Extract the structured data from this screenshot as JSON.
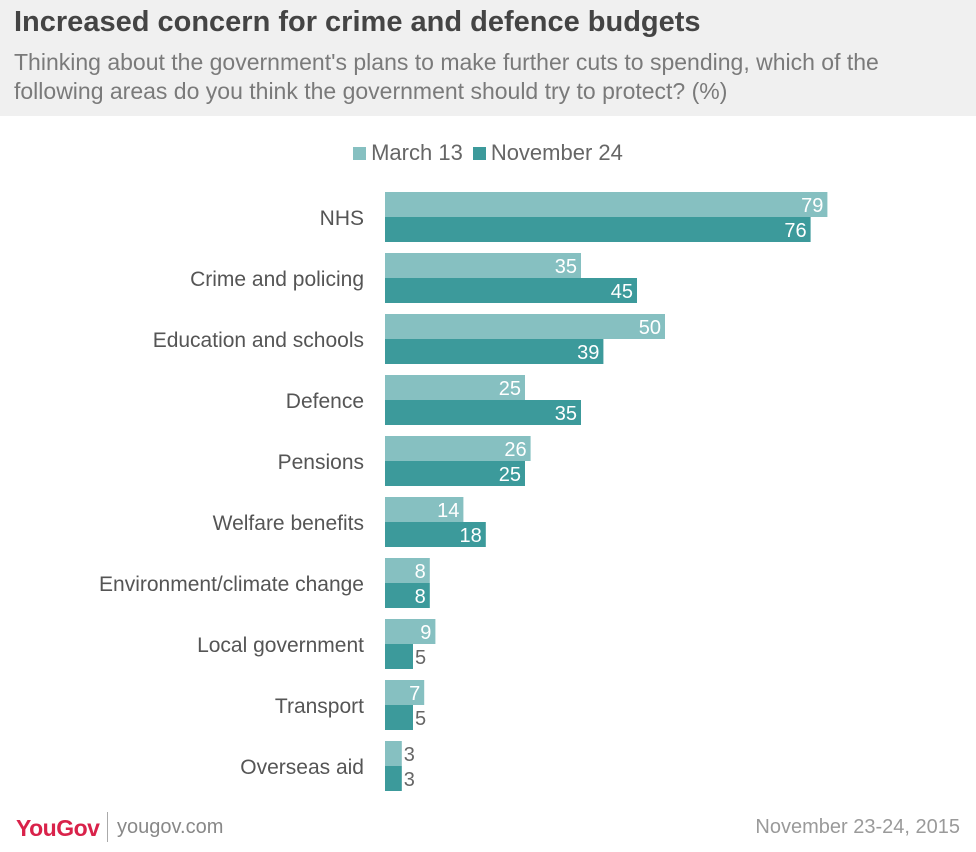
{
  "title": "Increased concern for crime and defence budgets",
  "subtitle": "Thinking about the government's plans to make further cuts to spending, which of the following areas do you think the government should try to protect? (%)",
  "footer": {
    "logo": "YouGov",
    "url": "yougov.com",
    "date": "November 23-24, 2015"
  },
  "colors": {
    "march": "#86c0c1",
    "november": "#3c9a9b",
    "header_bg": "#f0f0f0",
    "logo": "#d9224a"
  },
  "chart_data": {
    "type": "bar",
    "orientation": "horizontal",
    "categories": [
      "NHS",
      "Crime and policing",
      "Education and schools",
      "Defence",
      "Pensions",
      "Welfare benefits",
      "Environment/climate change",
      "Local government",
      "Transport",
      "Overseas aid"
    ],
    "series": [
      {
        "name": "March 13",
        "values": [
          79,
          35,
          50,
          25,
          26,
          14,
          8,
          9,
          7,
          3
        ]
      },
      {
        "name": "November 24",
        "values": [
          76,
          45,
          39,
          35,
          25,
          18,
          8,
          5,
          5,
          3
        ]
      }
    ],
    "xlim": [
      0,
      100
    ],
    "grid": false,
    "legend_position": "top-center",
    "data_labels": true
  }
}
